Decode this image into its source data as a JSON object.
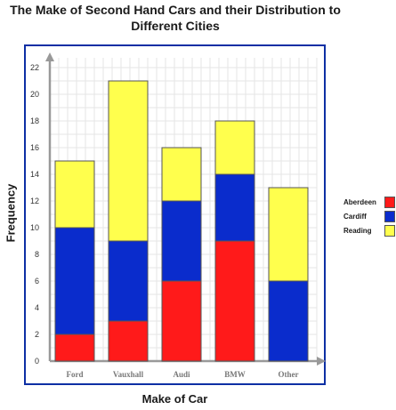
{
  "chart_data": {
    "type": "bar",
    "stacked": true,
    "title": "The Make of Second Hand Cars and their Distribution to Different Cities",
    "xlabel": "Make of Car",
    "ylabel": "Frequency",
    "categories": [
      "Ford",
      "Vauxhall",
      "Audi",
      "BMW",
      "Other"
    ],
    "series": [
      {
        "name": "Aberdeen",
        "color": "#ff1a1a",
        "values": [
          2,
          3,
          6,
          9,
          0
        ]
      },
      {
        "name": "Cardiff",
        "color": "#0a2ccc",
        "values": [
          8,
          6,
          6,
          5,
          6
        ]
      },
      {
        "name": "Reading",
        "color": "#ffff4d",
        "values": [
          5,
          12,
          4,
          4,
          7
        ]
      }
    ],
    "ylim": [
      0,
      22
    ],
    "yticks": [
      0,
      2,
      4,
      6,
      8,
      10,
      12,
      14,
      16,
      18,
      20,
      22
    ],
    "grid": true,
    "legend_position": "right"
  }
}
